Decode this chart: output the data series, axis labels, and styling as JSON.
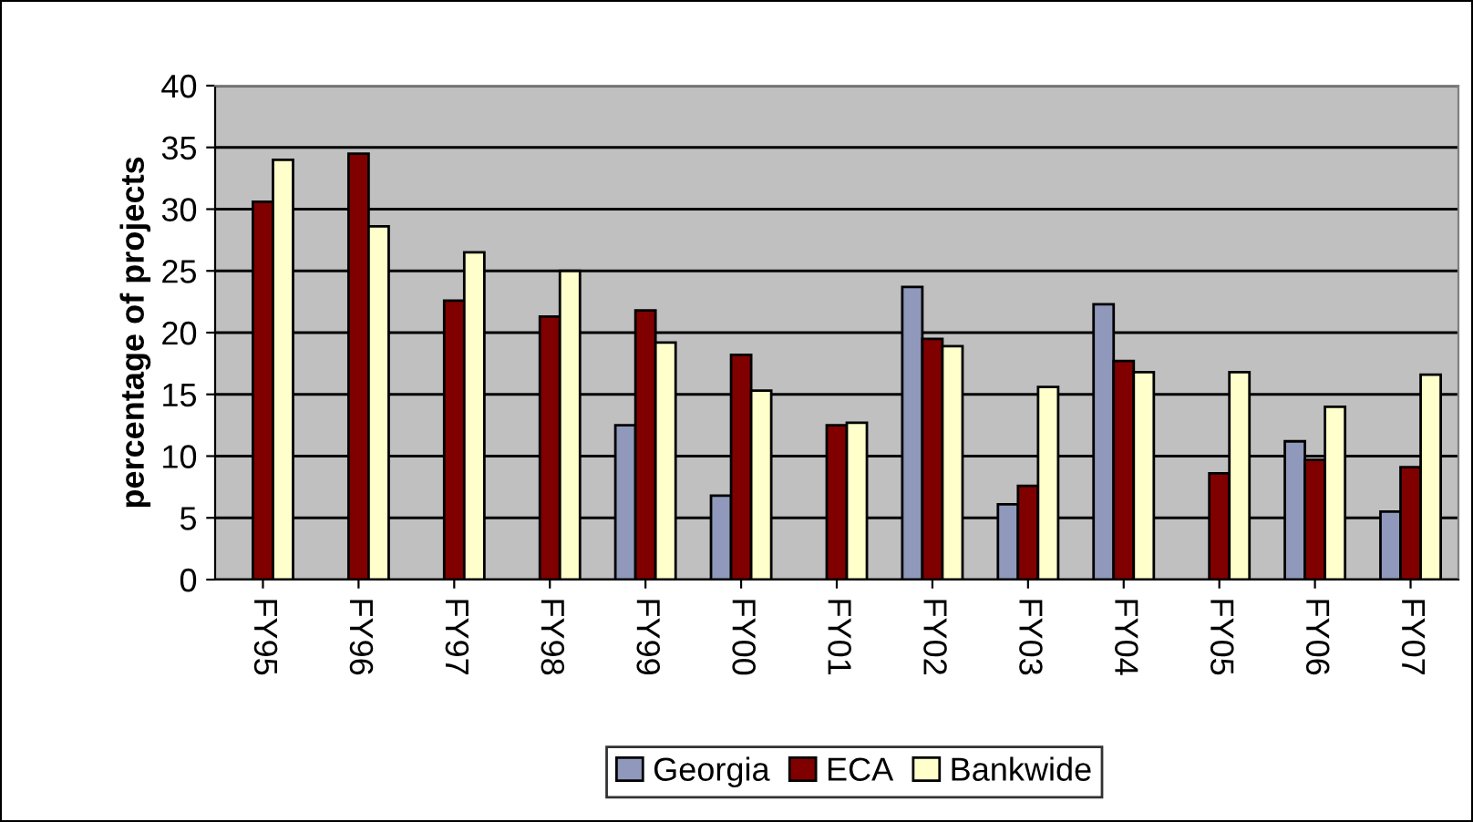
{
  "chart_data": {
    "type": "bar",
    "ylabel": "percentage of projects",
    "categories": [
      "FY95",
      "FY96",
      "FY97",
      "FY98",
      "FY99",
      "FY00",
      "FY01",
      "FY02",
      "FY03",
      "FY04",
      "FY05",
      "FY06",
      "FY07"
    ],
    "series": [
      {
        "name": "Georgia",
        "color": "#9099bb",
        "values": [
          null,
          null,
          null,
          null,
          12.5,
          6.8,
          null,
          23.7,
          6.1,
          22.3,
          null,
          11.2,
          5.5
        ]
      },
      {
        "name": "ECA",
        "color": "#800000",
        "values": [
          30.6,
          34.5,
          22.6,
          21.3,
          21.8,
          18.2,
          12.5,
          19.5,
          7.6,
          17.7,
          8.6,
          9.7,
          9.1
        ]
      },
      {
        "name": "Bankwide",
        "color": "#ffffcc",
        "values": [
          34.0,
          28.6,
          26.5,
          25.0,
          19.2,
          15.3,
          12.7,
          18.9,
          15.6,
          16.8,
          16.8,
          14.0,
          16.6
        ]
      }
    ],
    "ylim": [
      0,
      40
    ],
    "yticks": [
      0,
      5,
      10,
      15,
      20,
      25,
      30,
      35,
      40
    ],
    "grid": "y",
    "legend": "bottom"
  }
}
